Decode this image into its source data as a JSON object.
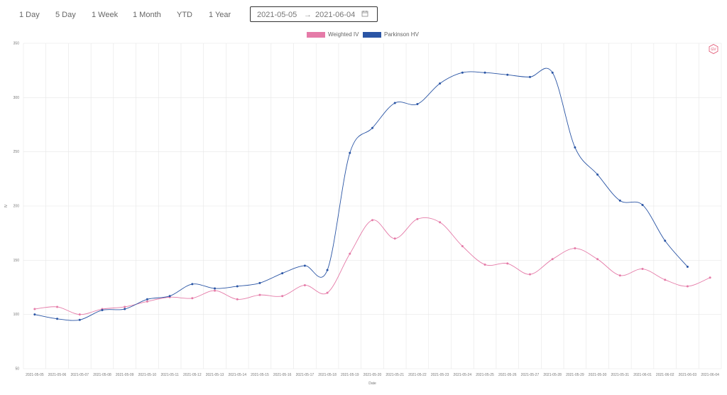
{
  "toolbar": {
    "ranges": [
      "1 Day",
      "5 Day",
      "1 Week",
      "1 Month",
      "YTD",
      "1 Year"
    ],
    "start_date": "2021-05-05",
    "separator": "→",
    "end_date": "2021-06-04",
    "calendar_icon": "calendar-icon"
  },
  "logo": {
    "text": "GV",
    "color": "#e0506e"
  },
  "chart_data": {
    "type": "line",
    "title": "",
    "xlabel": "Date",
    "ylabel": "IV",
    "ylim": [
      50,
      350
    ],
    "yticks": [
      50,
      100,
      150,
      200,
      250,
      300,
      350
    ],
    "grid": true,
    "legend_position": "top",
    "x": [
      "2021-05-05",
      "2021-05-06",
      "2021-05-07",
      "2021-05-08",
      "2021-05-09",
      "2021-05-10",
      "2021-05-11",
      "2021-05-12",
      "2021-05-13",
      "2021-05-14",
      "2021-05-15",
      "2021-05-16",
      "2021-05-17",
      "2021-05-18",
      "2021-05-19",
      "2021-05-20",
      "2021-05-21",
      "2021-05-22",
      "2021-05-23",
      "2021-05-24",
      "2021-05-25",
      "2021-05-26",
      "2021-05-27",
      "2021-05-28",
      "2021-05-29",
      "2021-05-30",
      "2021-05-31",
      "2021-06-01",
      "2021-06-02",
      "2021-06-03",
      "2021-06-04"
    ],
    "series": [
      {
        "name": "Weighted IV",
        "color": "#e57ba8",
        "values": [
          105,
          107,
          100,
          105,
          107,
          112,
          116,
          115,
          122,
          114,
          118,
          117,
          127,
          120,
          156,
          187,
          170,
          188,
          185,
          163,
          146,
          147,
          137,
          151,
          161,
          151,
          136,
          142,
          132,
          126,
          134
        ]
      },
      {
        "name": "Parkinson HV",
        "color": "#2a55a5",
        "values": [
          100,
          96,
          95,
          104,
          105,
          114,
          117,
          128,
          124,
          126,
          129,
          138,
          145,
          141,
          249,
          272,
          295,
          294,
          313,
          323,
          323,
          321,
          319,
          323,
          254,
          229,
          205,
          201,
          168,
          144,
          null
        ]
      }
    ]
  }
}
